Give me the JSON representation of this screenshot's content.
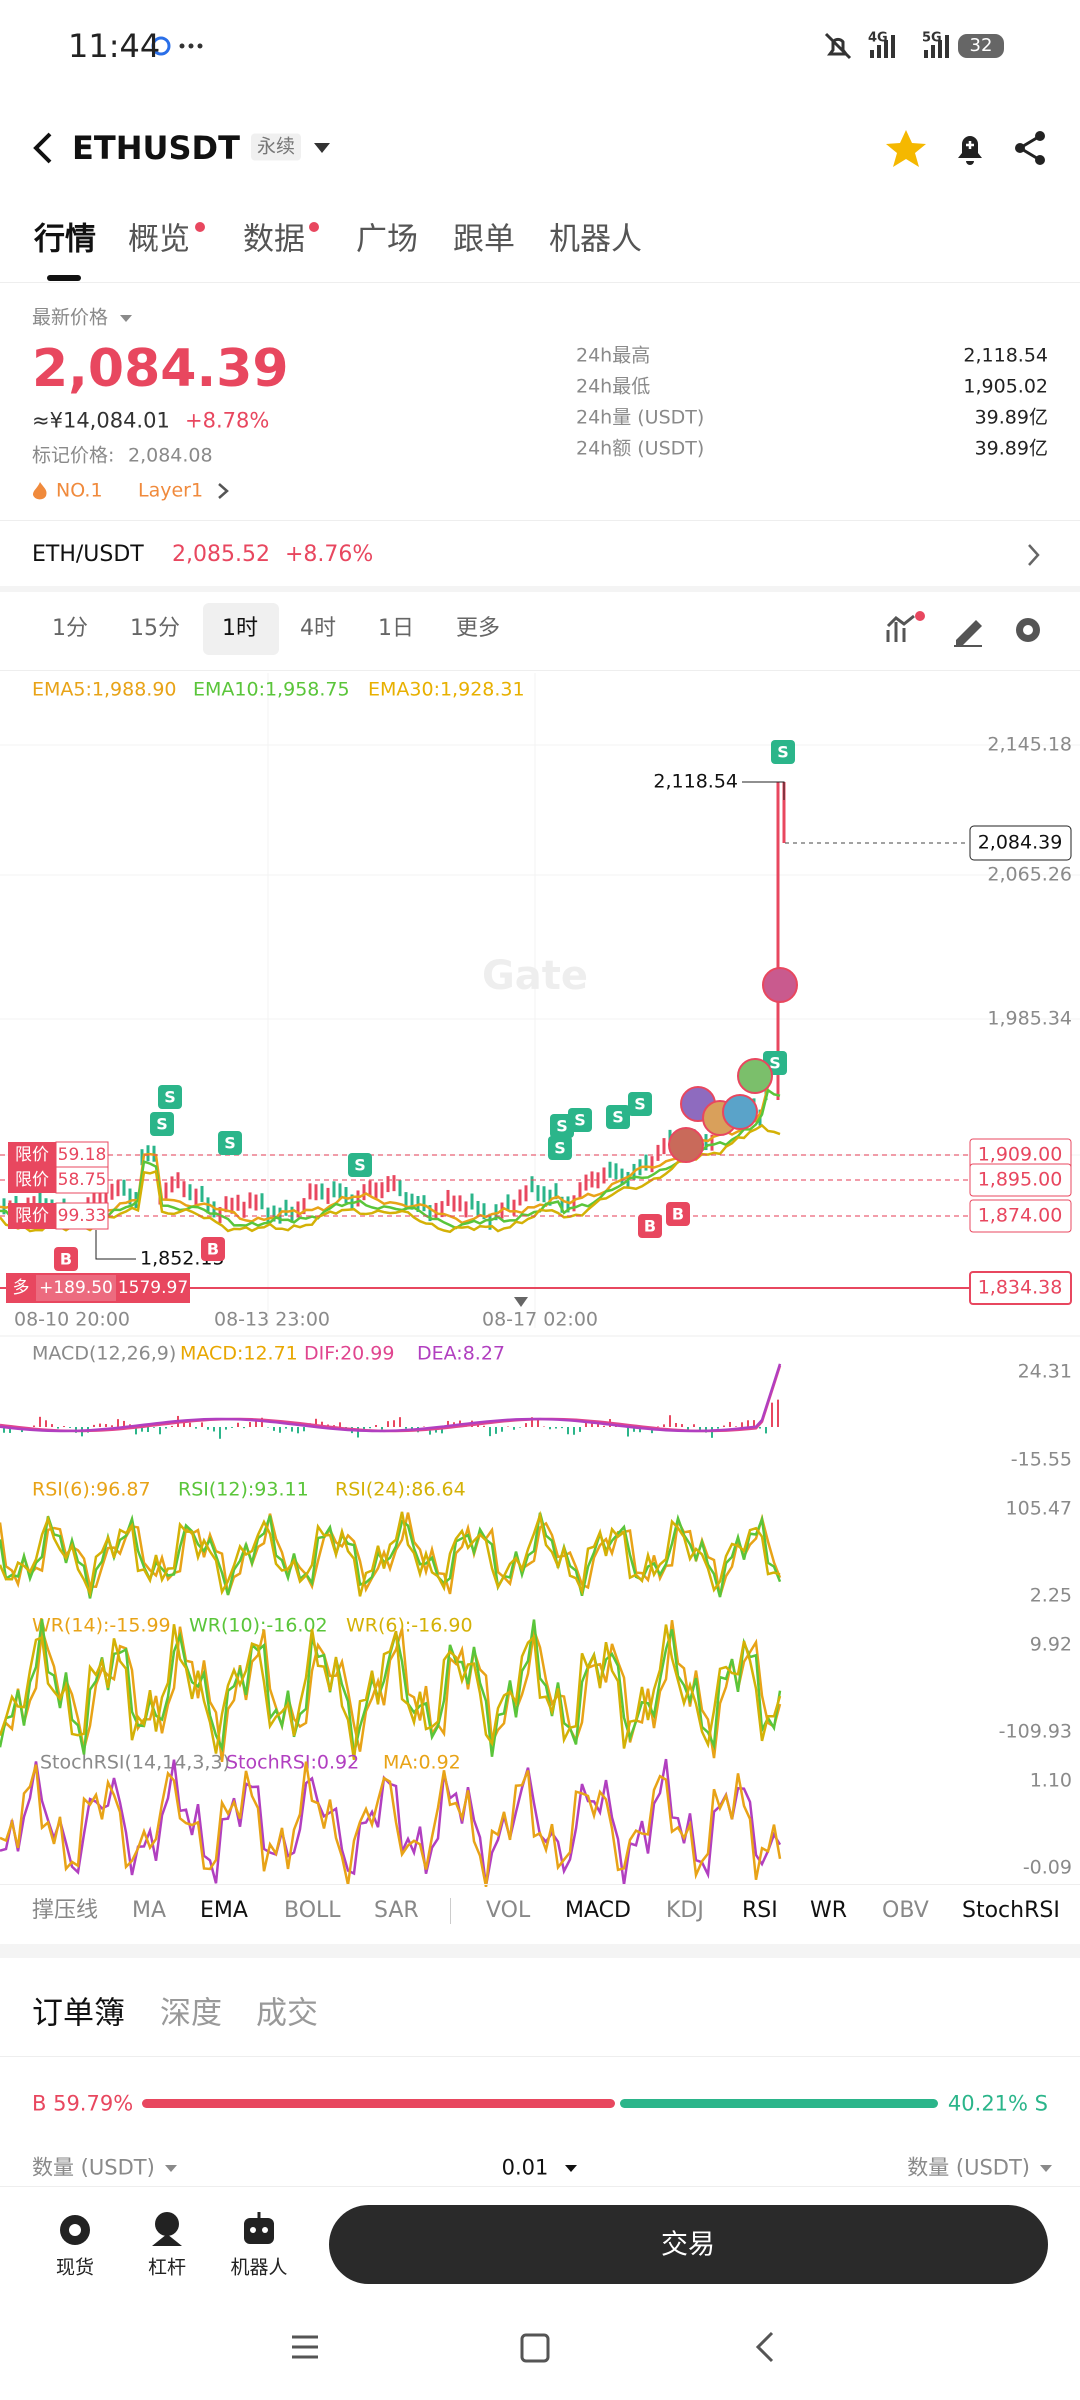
{
  "status_bar": {
    "time": "11:44",
    "network": [
      "4G",
      "5G"
    ],
    "battery": "32"
  },
  "header": {
    "symbol": "ETHUSDT",
    "contract_type": "永续"
  },
  "tabs": [
    "行情",
    "概览",
    "数据",
    "广场",
    "跟单",
    "机器人"
  ],
  "price_panel": {
    "last_price_label": "最新价格",
    "last_price": "2,084.39",
    "cny_price": "≈¥14,084.01",
    "change": "+8.78%",
    "mark_price_label": "标记价格:",
    "mark_price": "2,084.08",
    "tags": [
      "NO.1",
      "Layer1"
    ]
  },
  "stats": [
    {
      "label": "24h最高",
      "value": "2,118.54"
    },
    {
      "label": "24h最低",
      "value": "1,905.02"
    },
    {
      "label": "24h量 (USDT)",
      "value": "39.89亿"
    },
    {
      "label": "24h额 (USDT)",
      "value": "39.89亿"
    }
  ],
  "spot": {
    "pair": "ETH/USDT",
    "price": "2,085.52",
    "change": "+8.76%"
  },
  "intervals": [
    "1分",
    "15分",
    "1时",
    "4时",
    "1日",
    "更多"
  ],
  "chart": {
    "ema": [
      "EMA5:1,988.90",
      "EMA10:1,958.75",
      "EMA30:1,928.31"
    ],
    "watermark": "Gate",
    "price_axis": [
      "2,145.18",
      "2,065.26",
      "1,985.34"
    ],
    "current_price": "2,084.39",
    "order_axis": [
      "1,909.00",
      "1,895.00",
      "1,874.00"
    ],
    "high_marker": "2,118.54",
    "low_marker": "1,852.15",
    "orders": [
      {
        "label": "限价",
        "value": "59.18"
      },
      {
        "label": "限价",
        "value": "58.75"
      },
      {
        "label": "限价",
        "value": "99.33"
      }
    ],
    "position": {
      "side": "多",
      "pnl": "+189.50",
      "price": "1579.97",
      "axis": "1,834.38"
    },
    "time_axis": [
      "08-10 20:00",
      "08-13 23:00",
      "08-17 02:00"
    ],
    "sell_marker": "S",
    "buy_marker": "B"
  },
  "indicators": [
    {
      "title": "MACD(12,26,9)",
      "values": [
        "MACD:12.71",
        "DIF:20.99",
        "DEA:8.27"
      ],
      "axis": [
        "24.31",
        "-15.55"
      ]
    },
    {
      "title": "",
      "values": [
        "RSI(6):96.87",
        "RSI(12):93.11",
        "RSI(24):86.64"
      ],
      "axis": [
        "105.47",
        "2.25"
      ]
    },
    {
      "title": "",
      "values": [
        "WR(14):-15.99",
        "WR(10):-16.02",
        "WR(6):-16.90"
      ],
      "axis": [
        "9.92",
        "-109.93"
      ]
    },
    {
      "title": "StochRSI(14,14,3,3)",
      "values": [
        "StochRSI:0.92",
        "MA:0.92"
      ],
      "axis": [
        "1.10",
        "-0.09"
      ]
    }
  ],
  "indicator_tabs": [
    "撑压线",
    "MA",
    "EMA",
    "BOLL",
    "SAR",
    "VOL",
    "MACD",
    "KDJ",
    "RSI",
    "WR",
    "OBV",
    "StochRSI"
  ],
  "orderbook": {
    "tabs": [
      "订单簿",
      "深度",
      "成交"
    ],
    "buy_ratio": "B 59.79%",
    "sell_ratio": "40.21% S",
    "qty_left": "数量 (USDT)",
    "precision": "0.01",
    "qty_right": "数量 (USDT)"
  },
  "bottom_nav": {
    "items": [
      "现货",
      "杠杆",
      "机器人"
    ],
    "trade_button": "交易"
  }
}
